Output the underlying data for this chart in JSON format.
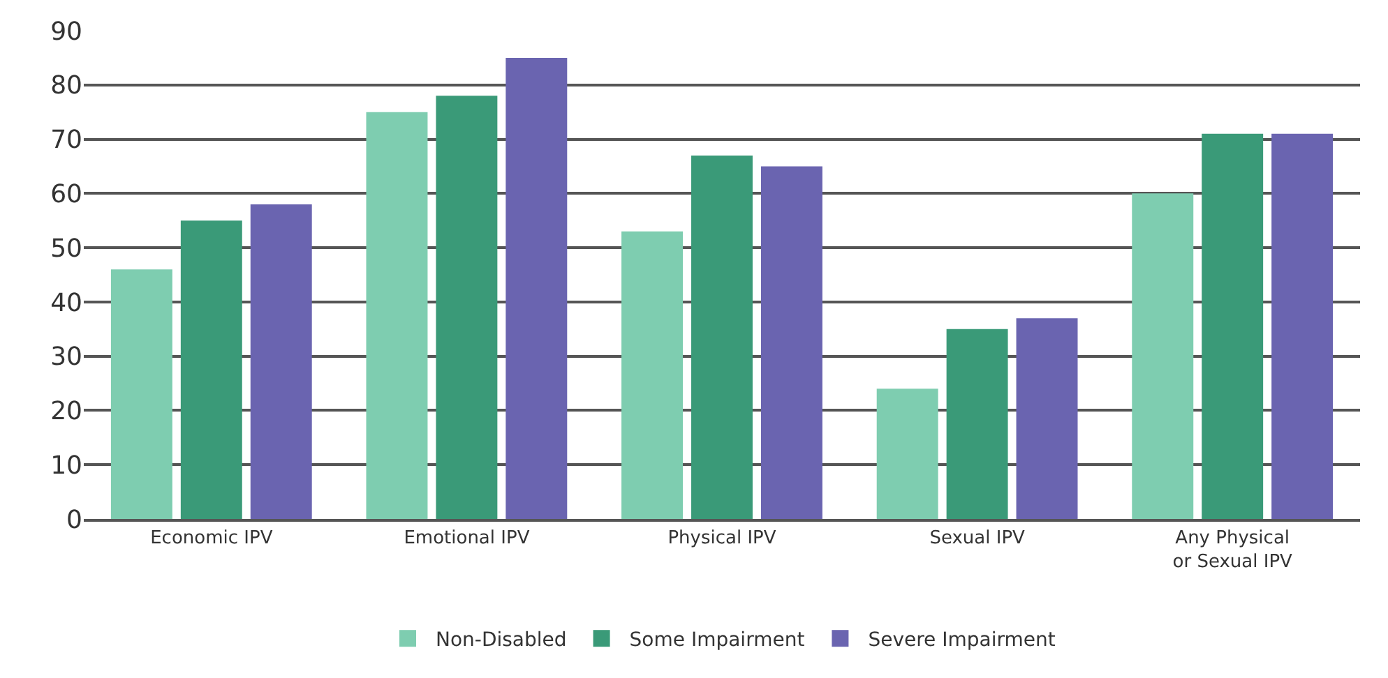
{
  "chart_data": {
    "type": "bar",
    "categories": [
      "Economic IPV",
      "Emotional IPV",
      "Physical IPV",
      "Sexual IPV",
      "Any Physical or Sexual IPV"
    ],
    "series": [
      {
        "name": "Non-Disabled",
        "color": "#7ecdb0",
        "values": [
          46,
          75,
          53,
          24,
          60
        ]
      },
      {
        "name": "Some Impairment",
        "color": "#3a9a78",
        "values": [
          55,
          78,
          67,
          35,
          71
        ]
      },
      {
        "name": "Severe Impairment",
        "color": "#6a64b0",
        "values": [
          58,
          85,
          65,
          37,
          71
        ]
      }
    ],
    "ylim": [
      0,
      90
    ],
    "yticks": [
      0,
      10,
      20,
      30,
      40,
      50,
      60,
      70,
      80,
      90
    ],
    "grid": "y",
    "legend": "bottom"
  }
}
